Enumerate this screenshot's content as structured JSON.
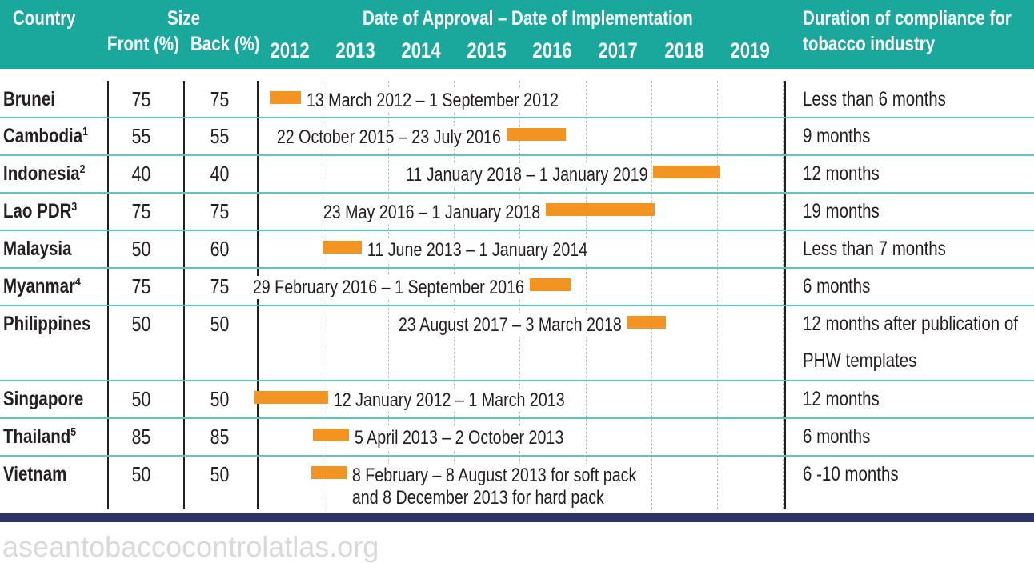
{
  "header": {
    "country": "Country",
    "size": "Size",
    "front": "Front (%)",
    "back": "Back (%)",
    "dates": "Date of Approval – Date of Implementation",
    "duration_line1": "Duration of compliance for",
    "duration_line2": "tobacco industry",
    "years": [
      "2012",
      "2013",
      "2014",
      "2015",
      "2016",
      "2017",
      "2018",
      "2019"
    ]
  },
  "rows": [
    {
      "country": "Brunei",
      "sup": "",
      "front": "75",
      "back": "75",
      "dates": "13 March 2012 – 1 September 2012",
      "dates2": "",
      "duration": "Less than 6 months",
      "duration2": "",
      "bar_start": 2012.2,
      "bar_end": 2012.67
    },
    {
      "country": "Cambodia",
      "sup": "1",
      "front": "55",
      "back": "55",
      "dates": "22 October 2015 – 23 July 2016",
      "dates2": "",
      "duration": "9 months",
      "duration2": "",
      "bar_start": 2015.8,
      "bar_end": 2016.7
    },
    {
      "country": "Indonesia",
      "sup": "2",
      "front": "40",
      "back": "40",
      "dates": "11 January 2018 – 1 January 2019",
      "dates2": "",
      "duration": "12 months",
      "duration2": "",
      "bar_start": 2018.03,
      "bar_end": 2019.05
    },
    {
      "country": "Lao PDR",
      "sup": "3",
      "front": "75",
      "back": "75",
      "dates": "23 May 2016 – 1 January 2018",
      "dates2": "",
      "duration": "19 months",
      "duration2": "",
      "bar_start": 2016.4,
      "bar_end": 2018.05
    },
    {
      "country": "Malaysia",
      "sup": "",
      "front": "50",
      "back": "60",
      "dates": "11 June 2013 – 1 January 2014",
      "dates2": "",
      "duration": "Less than 7 months",
      "duration2": "",
      "bar_start": 2013.0,
      "bar_end": 2013.6
    },
    {
      "country": "Myanmar",
      "sup": "4",
      "front": "75",
      "back": "75",
      "dates": "29 February 2016 – 1 September 2016",
      "dates2": "",
      "duration": "6 months",
      "duration2": "",
      "bar_start": 2016.15,
      "bar_end": 2016.77
    },
    {
      "country": "Philippines",
      "sup": "",
      "front": "50",
      "back": "50",
      "dates": "23 August 2017 – 3 March 2018",
      "dates2": "",
      "duration": "12 months after publication of",
      "duration2": "PHW templates",
      "bar_start": 2017.63,
      "bar_end": 2018.22
    },
    {
      "country": "Singapore",
      "sup": "",
      "front": "50",
      "back": "50",
      "dates": "12 January 2012 – 1 March 2013",
      "dates2": "",
      "duration": "12 months",
      "duration2": "",
      "bar_start": 2011.96,
      "bar_end": 2013.08
    },
    {
      "country": "Thailand",
      "sup": "5",
      "front": "85",
      "back": "85",
      "dates": "5 April 2013 – 2 October 2013",
      "dates2": "",
      "duration": "6 months",
      "duration2": "",
      "bar_start": 2012.85,
      "bar_end": 2013.4
    },
    {
      "country": "Vietnam",
      "sup": "",
      "front": "50",
      "back": "50",
      "dates": "8 February – 8 August 2013 for soft pack",
      "dates2": "and 8 December 2013 for hard pack",
      "duration": "6 -10 months",
      "duration2": "",
      "bar_start": 2012.83,
      "bar_end": 2013.37
    }
  ],
  "colors": {
    "header_bg": "#1aa89c",
    "bar": "#f39322",
    "row_line": "#5fc4bb",
    "bottom_bar": "#2e3265"
  },
  "footer": "aseantobaccocontrolatlas.org"
}
